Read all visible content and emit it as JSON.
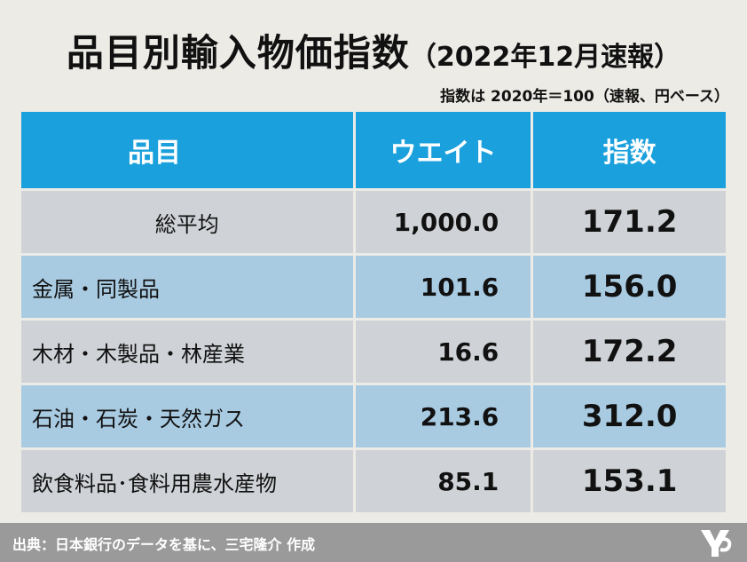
{
  "title": "品目別輸入物価指数",
  "subtitle": "（2022年12月速報）",
  "note": "指数は 2020年＝100（速報、円ベース）",
  "chart_data": {
    "type": "table",
    "columns": [
      "品目",
      "ウエイト",
      "指数"
    ],
    "rows": [
      {
        "item": "総平均",
        "weight": "1,000.0",
        "index": "171.2"
      },
      {
        "item": "金属・同製品",
        "weight": "101.6",
        "index": "156.0"
      },
      {
        "item": "木材・木製品・林産業",
        "weight": "16.6",
        "index": "172.2"
      },
      {
        "item": "石油・石炭・天然ガス",
        "weight": "213.6",
        "index": "312.0"
      },
      {
        "item": "飲食料品･食料用農水産物",
        "weight": "85.1",
        "index": "153.1"
      }
    ]
  },
  "colors": {
    "header": "#1aa0dc",
    "row_light": "#cfd2d6",
    "row_blue": "#a9cbe2",
    "footer": "#9a9a9a",
    "background": "#ecebe6"
  },
  "footer": {
    "source": "出典：日本銀行のデータを基に、三宅隆介 作成",
    "logo_icon": "publisher-logo-icon"
  }
}
